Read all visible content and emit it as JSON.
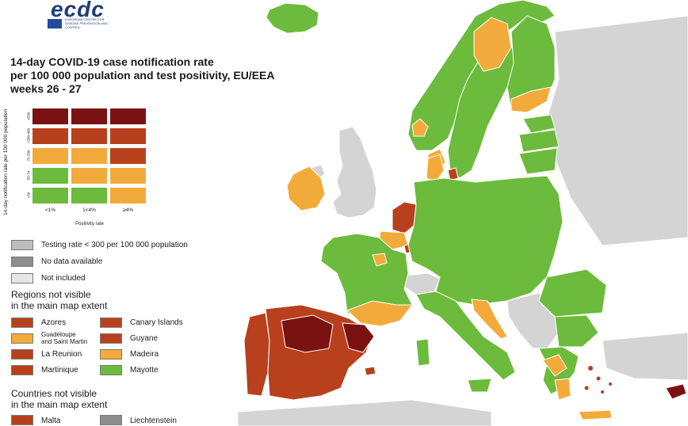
{
  "logo": {
    "text": "ecdc",
    "sub": "EUROPEAN CENTRE FOR DISEASE PREVENTION AND CONTROL"
  },
  "title": {
    "line1": "14-day COVID-19 case notification rate",
    "line2": "per 100 000 population and test positivity, EU/EEA",
    "line3": "weeks 26 - 27"
  },
  "matrix": {
    "ylabel": "14-day notification rate per 100 000 population",
    "xlabel": "Positivity rate",
    "rows": [
      "≥500",
      ">200-499",
      "75-200",
      "50-74",
      "<50"
    ],
    "cols": [
      "<1%",
      "1<4%",
      "≥4%"
    ],
    "colors": [
      [
        "#7b1212",
        "#7b1212",
        "#7b1212"
      ],
      [
        "#b9401d",
        "#b9401d",
        "#b9401d"
      ],
      [
        "#f2ab3a",
        "#f2ab3a",
        "#b9401d"
      ],
      [
        "#6cbb3c",
        "#f2ab3a",
        "#f2ab3a"
      ],
      [
        "#6cbb3c",
        "#6cbb3c",
        "#f2ab3a"
      ]
    ]
  },
  "legend": {
    "grey_items": [
      {
        "label": "Testing rate < 300 per 100 000 population",
        "color": "#bdbdbd"
      },
      {
        "label": "No data available",
        "color": "#8c8c8c"
      },
      {
        "label": "Not included",
        "color": "#e6e6e6"
      }
    ],
    "regions_title_1": "Regions not visible",
    "regions_title_2": "in the main map extent",
    "regions": [
      {
        "label": "Azores",
        "color": "#b9401d"
      },
      {
        "label": "Canary Islands",
        "color": "#b9401d"
      },
      {
        "label_1": "Guadeloupe",
        "label_2": "and Saint Martin",
        "color": "#f2ab3a"
      },
      {
        "label": "Guyane",
        "color": "#b9401d"
      },
      {
        "label": "La Reunion",
        "color": "#b9401d"
      },
      {
        "label": "Madeira",
        "color": "#f2ab3a"
      },
      {
        "label": "Martinique",
        "color": "#b9401d"
      },
      {
        "label": "Mayotte",
        "color": "#6cbb3c"
      }
    ],
    "countries_title_1": "Countries not visible",
    "countries_title_2": "in the main map extent",
    "countries": [
      {
        "label": "Malta",
        "color": "#b9401d"
      },
      {
        "label": "Liechtenstein",
        "color": "#8c8c8c"
      }
    ]
  },
  "map_colors": {
    "sea": "#ffffff",
    "non_eu": "#d4d4d4",
    "green": "#6cbb3c",
    "orange": "#f2ab3a",
    "red": "#b9401d",
    "dark_red": "#7b1212",
    "border": "#ffffff"
  }
}
